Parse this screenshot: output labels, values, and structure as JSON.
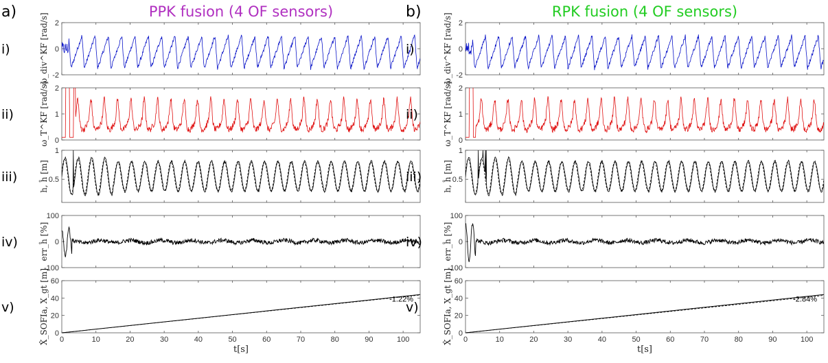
{
  "colors": {
    "ppk_title": "#b030c0",
    "rpk_title": "#22cc22",
    "blue": "#0a14c8",
    "red": "#e01010",
    "black": "#000000"
  },
  "rows": [
    {
      "roman": "i)",
      "ylabel": "ω_div^KF [rad/s]",
      "ylim": [
        -2,
        2
      ],
      "yticks": [
        "2",
        "0",
        "-2"
      ]
    },
    {
      "roman": "ii)",
      "ylabel": "ω_T^KF [rad/s]",
      "ylim": [
        0,
        2
      ],
      "yticks": [
        "2",
        "1",
        "0"
      ]
    },
    {
      "roman": "iii)",
      "ylabel": "h, ĥ [m]",
      "ylim": [
        0.1,
        1
      ],
      "yticks": [
        "1",
        "0.5"
      ]
    },
    {
      "roman": "iv)",
      "ylabel": "err_ĥ [%]",
      "ylim": [
        -100,
        100
      ],
      "yticks": [
        "100",
        "0",
        "-100"
      ]
    },
    {
      "roman": "v)",
      "ylabel": "X̂_SOFIa, X_gt [m]",
      "ylim": [
        0,
        60
      ],
      "yticks": [
        "60",
        "40",
        "20",
        "0"
      ]
    }
  ],
  "xaxis": {
    "label": "t[s]",
    "ticks": [
      "0",
      "10",
      "20",
      "30",
      "40",
      "50",
      "60",
      "70",
      "80",
      "90",
      "100"
    ]
  },
  "chart_data": [
    {
      "type": "line",
      "panel": "a)",
      "title": "PPK fusion (4 OF sensors)",
      "xlabel": "t[s]",
      "xlim": [
        0,
        105
      ],
      "oscillation_period_s": 3.9,
      "subplots": [
        {
          "row": "i)",
          "series_color": "blue",
          "ylim": [
            -2,
            2
          ],
          "approx_range": [
            -1.8,
            1.2
          ]
        },
        {
          "row": "ii)",
          "series_color": "red",
          "ylim": [
            0,
            2
          ],
          "approx_range": [
            0.2,
            2.0
          ]
        },
        {
          "row": "iii)",
          "series": [
            "solid",
            "dashed"
          ],
          "ylim": [
            0.1,
            1
          ],
          "approx_range": [
            0.25,
            1.0
          ]
        },
        {
          "row": "iv)",
          "ylim": [
            -100,
            100
          ],
          "approx_range": [
            -40,
            70
          ]
        },
        {
          "row": "v)",
          "ylim": [
            0,
            60
          ],
          "x": [
            0,
            105
          ],
          "y_gt": [
            0,
            44
          ],
          "y_est": [
            0,
            43.5
          ],
          "annotation": "-1.22%"
        }
      ]
    },
    {
      "type": "line",
      "panel": "b)",
      "title": "RPK fusion (4 OF sensors)",
      "xlabel": "t[s]",
      "xlim": [
        0,
        105
      ],
      "oscillation_period_s": 3.9,
      "subplots": [
        {
          "row": "i)",
          "series_color": "blue",
          "ylim": [
            -2,
            2
          ],
          "approx_range": [
            -1.8,
            1.2
          ]
        },
        {
          "row": "ii)",
          "series_color": "red",
          "ylim": [
            0,
            2
          ],
          "approx_range": [
            0.2,
            2.0
          ]
        },
        {
          "row": "iii)",
          "series": [
            "solid",
            "dashed"
          ],
          "ylim": [
            0.1,
            1
          ],
          "approx_range": [
            0.25,
            1.0
          ]
        },
        {
          "row": "iv)",
          "ylim": [
            -100,
            100
          ],
          "approx_range": [
            -60,
            90
          ]
        },
        {
          "row": "v)",
          "ylim": [
            0,
            60
          ],
          "x": [
            0,
            105
          ],
          "y_gt": [
            0,
            44
          ],
          "y_est": [
            0,
            43
          ],
          "annotation": "-2.84%"
        }
      ]
    }
  ]
}
